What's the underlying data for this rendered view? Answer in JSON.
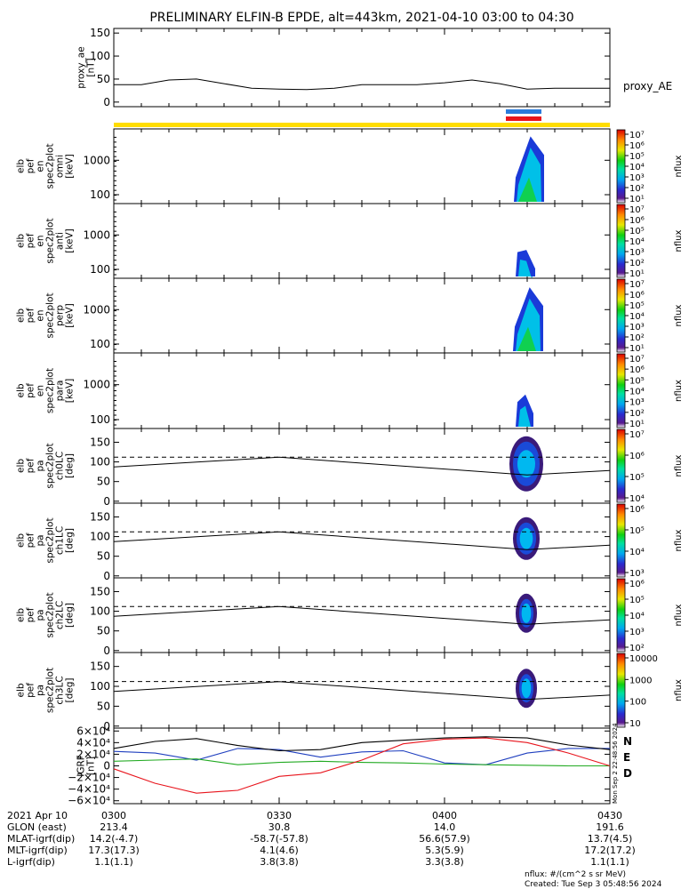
{
  "title": "PRELIMINARY ELFIN-B EPDE, alt=443km, 2021-04-10 03:00 to 04:30",
  "colors": {
    "phase_bar": "#ffdd00",
    "sci_bar_blue": "#2a7bdc",
    "sci_bar_red": "#e8141c",
    "grf_N": "#1f3fbf",
    "grf_E": "#22aa22",
    "grf_D": "#e8141c",
    "line": "#000000"
  },
  "chart_data": [
    {
      "type": "line",
      "name": "proxy_ae",
      "ylabel": [
        "proxy_ae",
        "[nT]"
      ],
      "series_label": "proxy_AE",
      "ylim": [
        -10,
        160
      ],
      "yticks": [
        "0",
        "50",
        "100",
        "150"
      ],
      "x": [
        0,
        5,
        10,
        15,
        20,
        25,
        30,
        35,
        40,
        45,
        50,
        55,
        60,
        65,
        70,
        75,
        80,
        85,
        90
      ],
      "values": [
        38,
        38,
        48,
        50,
        40,
        30,
        28,
        27,
        30,
        38,
        38,
        38,
        42,
        48,
        40,
        28,
        30,
        30,
        30
      ]
    },
    {
      "type": "heatmap",
      "name": "omni",
      "ylabel": [
        "elb",
        "pef",
        "en",
        "spec2plot",
        "omni",
        "[keV]"
      ],
      "yticks": [
        "100",
        "1000"
      ],
      "colorbar": {
        "ticks": [
          "10⁷",
          "10⁶",
          "10⁵",
          "10⁴",
          "10³",
          "10²",
          "10¹"
        ],
        "label": "nflux"
      }
    },
    {
      "type": "heatmap",
      "name": "anti",
      "ylabel": [
        "elb",
        "pef",
        "en",
        "spec2plot",
        "anti",
        "[keV]"
      ],
      "yticks": [
        "100",
        "1000"
      ],
      "colorbar": {
        "ticks": [
          "10⁷",
          "10⁶",
          "10⁵",
          "10⁴",
          "10³",
          "10²",
          "10¹"
        ],
        "label": "nflux"
      }
    },
    {
      "type": "heatmap",
      "name": "perp",
      "ylabel": [
        "elb",
        "pef",
        "en",
        "spec2plot",
        "perp",
        "[keV]"
      ],
      "yticks": [
        "100",
        "1000"
      ],
      "colorbar": {
        "ticks": [
          "10⁷",
          "10⁶",
          "10⁵",
          "10⁴",
          "10³",
          "10²",
          "10¹"
        ],
        "label": "nflux"
      }
    },
    {
      "type": "heatmap",
      "name": "para",
      "ylabel": [
        "elb",
        "pef",
        "en",
        "spec2plot",
        "para",
        "[keV]"
      ],
      "yticks": [
        "100",
        "1000"
      ],
      "colorbar": {
        "ticks": [
          "10⁷",
          "10⁶",
          "10⁵",
          "10⁴",
          "10³",
          "10²",
          "10¹"
        ],
        "label": "nflux"
      }
    },
    {
      "type": "heatmap",
      "name": "ch0LC",
      "ylabel": [
        "elb",
        "pef",
        "pa",
        "spec2plot",
        "ch0LC",
        "[deg]"
      ],
      "yticks": [
        "0",
        "50",
        "100",
        "150"
      ],
      "colorbar": {
        "ticks": [
          "10⁷",
          "10⁶",
          "10⁵",
          "10⁴"
        ],
        "label": "nflux"
      }
    },
    {
      "type": "heatmap",
      "name": "ch1LC",
      "ylabel": [
        "elb",
        "pef",
        "pa",
        "spec2plot",
        "ch1LC",
        "[deg]"
      ],
      "yticks": [
        "0",
        "50",
        "100",
        "150"
      ],
      "colorbar": {
        "ticks": [
          "10⁶",
          "10⁵",
          "10⁴",
          "10³"
        ],
        "label": "nflux"
      }
    },
    {
      "type": "heatmap",
      "name": "ch2LC",
      "ylabel": [
        "elb",
        "pef",
        "pa",
        "spec2plot",
        "ch2LC",
        "[deg]"
      ],
      "yticks": [
        "0",
        "50",
        "100",
        "150"
      ],
      "colorbar": {
        "ticks": [
          "10⁶",
          "10⁵",
          "10⁴",
          "10³",
          "10²"
        ],
        "label": "nflux"
      }
    },
    {
      "type": "heatmap",
      "name": "ch3LC",
      "ylabel": [
        "elb",
        "pef",
        "pa",
        "spec2plot",
        "ch3LC",
        "[deg]"
      ],
      "yticks": [
        "0",
        "50",
        "100",
        "150"
      ],
      "colorbar": {
        "ticks": [
          "10000",
          "1000",
          "100",
          "10"
        ],
        "label": "nflux"
      }
    },
    {
      "type": "line",
      "name": "IGRF",
      "ylabel": [
        "IGRF",
        "[nT]"
      ],
      "ylim": [
        -65000,
        65000
      ],
      "yticks": [
        "6×10⁴",
        "4×10⁴",
        "2×10⁴",
        "0",
        "−2×10⁴",
        "−4×10⁴",
        "−6×10⁴"
      ],
      "legend": [
        "N",
        "E",
        "D"
      ],
      "x": [
        0,
        7.5,
        15,
        22.5,
        30,
        37.5,
        45,
        52.5,
        60,
        67.5,
        75,
        82.5,
        90
      ],
      "series": [
        {
          "name": "N",
          "values": [
            25000,
            22000,
            10000,
            30000,
            28000,
            15000,
            24000,
            26000,
            5000,
            2000,
            22000,
            30000,
            30000
          ]
        },
        {
          "name": "E",
          "values": [
            8000,
            10000,
            12000,
            2000,
            6000,
            8000,
            6000,
            5000,
            3000,
            2000,
            1000,
            0,
            0
          ]
        },
        {
          "name": "D",
          "values": [
            -5000,
            -30000,
            -47000,
            -42000,
            -18000,
            -12000,
            10000,
            38000,
            46000,
            48000,
            40000,
            22000,
            0
          ]
        },
        {
          "name": "|B|",
          "values": [
            30000,
            42000,
            47000,
            35000,
            26000,
            28000,
            40000,
            44000,
            48000,
            50000,
            48000,
            36000,
            28000
          ]
        }
      ]
    }
  ],
  "loss_cone_lines": {
    "solid": {
      "x": [
        0,
        30,
        75,
        90
      ],
      "values": [
        87,
        112,
        67,
        78
      ]
    },
    "dashed": 112
  },
  "footer": {
    "rows": [
      {
        "label": "2021 Apr 10",
        "values": [
          "0300",
          "0330",
          "0400",
          "0430"
        ]
      },
      {
        "label": "GLON (east)",
        "values": [
          "213.4",
          "30.8",
          "14.0",
          "191.6"
        ]
      },
      {
        "label": "MLAT-igrf(dip)",
        "values": [
          "14.2(-4.7)",
          "-58.7(-57.8)",
          "56.6(57.9)",
          "13.7(4.5)"
        ]
      },
      {
        "label": "MLT-igrf(dip)",
        "values": [
          "17.3(17.3)",
          "4.1(4.6)",
          "5.3(5.9)",
          "17.2(17.2)"
        ]
      },
      {
        "label": "L-igrf(dip)",
        "values": [
          "1.1(1.1)",
          "3.8(3.8)",
          "3.3(3.8)",
          "1.1(1.1)"
        ]
      }
    ],
    "units": "nflux: #/(cm^2 s sr MeV)",
    "created": "Created: Tue Sep  3 05:48:56 2024"
  },
  "side_stamp": "Mon Sep  2 22:48:56 2024"
}
